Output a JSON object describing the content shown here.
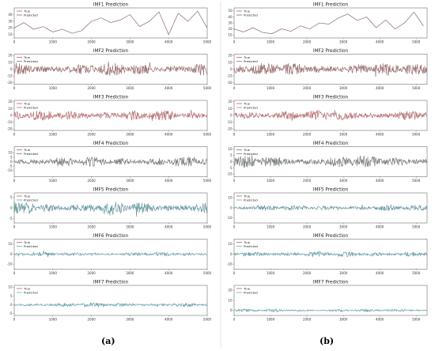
{
  "figure": {
    "panel_labels": [
      "(a)",
      "(b)"
    ],
    "legend": [
      "True",
      "Predicted"
    ]
  },
  "colors": {
    "true": "#c85a5a",
    "imf1_pred": "#707070",
    "imf2_pred": "#8a7a7a",
    "imf3_pred": "#b07a7a",
    "imf4_pred": "#5f8a8a",
    "imf5_pred": "#47b0b8",
    "imf6_pred": "#42b8c0",
    "imf7_pred": "#45bcc4"
  },
  "chart_data": [
    {
      "type": "line",
      "panel": "a",
      "row": 1,
      "title": "IMF1 Prediction",
      "legend": [
        "True",
        "Predicted"
      ],
      "xlim": [
        0,
        5000
      ],
      "xticks": [
        0,
        1000,
        2000,
        3000,
        4000,
        5000
      ],
      "ylim": [
        5,
        50
      ],
      "yticks": [
        10,
        20,
        30,
        40
      ],
      "series": [
        {
          "name": "True",
          "x": [
            0,
            250,
            500,
            750,
            1000,
            1250,
            1500,
            1750,
            2000,
            2250,
            2500,
            2750,
            3000,
            3250,
            3500,
            3750,
            4000,
            4250,
            4500,
            4750,
            5000
          ],
          "y": [
            20,
            28,
            18,
            22,
            14,
            18,
            12,
            16,
            30,
            35,
            28,
            32,
            40,
            22,
            30,
            44,
            10,
            42,
            30,
            45,
            20
          ]
        },
        {
          "name": "Predicted",
          "x": [
            0,
            250,
            500,
            750,
            1000,
            1250,
            1500,
            1750,
            2000,
            2250,
            2500,
            2750,
            3000,
            3250,
            3500,
            3750,
            4000,
            4250,
            4500,
            4750,
            5000
          ],
          "y": [
            20,
            28,
            18,
            22,
            14,
            18,
            12,
            16,
            30,
            35,
            28,
            32,
            40,
            22,
            30,
            44,
            10,
            42,
            30,
            45,
            20
          ]
        }
      ]
    },
    {
      "type": "line",
      "panel": "a",
      "row": 2,
      "title": "IMF2 Prediction",
      "legend": [
        "True",
        "Predicted"
      ],
      "xlim": [
        0,
        5000
      ],
      "xticks": [
        0,
        1000,
        2000,
        3000,
        4000,
        5000
      ],
      "ylim": [
        -22,
        22
      ],
      "yticks": [
        -20,
        -10,
        0,
        10,
        20
      ],
      "amplitude": 10
    },
    {
      "type": "line",
      "panel": "a",
      "row": 3,
      "title": "IMF3 Prediction",
      "legend": [
        "True",
        "Predicted"
      ],
      "xlim": [
        0,
        5000
      ],
      "xticks": [
        0,
        1000,
        2000,
        3000,
        4000,
        5000
      ],
      "ylim": [
        -22,
        22
      ],
      "yticks": [
        -20,
        -10,
        0,
        10,
        20
      ],
      "amplitude": 8
    },
    {
      "type": "line",
      "panel": "a",
      "row": 4,
      "title": "IMF4 Prediction",
      "legend": [
        "True",
        "Predicted"
      ],
      "xlim": [
        0,
        5000
      ],
      "xticks": [
        0,
        1000,
        2000,
        3000,
        4000,
        5000
      ],
      "ylim": [
        -17,
        17
      ],
      "yticks": [
        -10,
        -5,
        0,
        5,
        10
      ],
      "amplitude": 6
    },
    {
      "type": "line",
      "panel": "a",
      "row": 5,
      "title": "IMF5 Prediction",
      "legend": [
        "True",
        "Predicted"
      ],
      "xlim": [
        0,
        5000
      ],
      "xticks": [
        0,
        1000,
        2000,
        3000,
        4000,
        5000
      ],
      "ylim": [
        -7,
        7
      ],
      "yticks": [
        -5,
        0,
        5
      ],
      "amplitude": 3
    },
    {
      "type": "line",
      "panel": "a",
      "row": 6,
      "title": "IMF6 Prediction",
      "legend": [
        "True",
        "Predicted"
      ],
      "xlim": [
        0,
        5000
      ],
      "xticks": [
        0,
        1000,
        2000,
        3000,
        4000,
        5000
      ],
      "ylim": [
        -15,
        15
      ],
      "yticks": [
        -10,
        0,
        10
      ],
      "amplitude": 2
    },
    {
      "type": "line",
      "panel": "a",
      "row": 7,
      "title": "IMF7 Prediction",
      "legend": [
        "True",
        "Predicted"
      ],
      "xlim": [
        0,
        5000
      ],
      "xticks": [
        0,
        1000,
        2000,
        3000,
        4000,
        5000
      ],
      "ylim": [
        -6,
        11
      ],
      "yticks": [
        -5,
        0,
        5,
        10
      ],
      "amplitude": 1.2
    },
    {
      "type": "line",
      "panel": "b",
      "row": 1,
      "title": "IMF1 Prediction",
      "legend": [
        "True",
        "Predicted"
      ],
      "xlim": [
        0,
        5300
      ],
      "xticks": [
        0,
        1000,
        2000,
        3000,
        4000,
        5000
      ],
      "ylim": [
        5,
        55
      ],
      "yticks": [
        10,
        20,
        30,
        40,
        50
      ],
      "series": [
        {
          "name": "True",
          "x": [
            0,
            260,
            520,
            780,
            1040,
            1300,
            1560,
            1820,
            2080,
            2340,
            2600,
            2860,
            3120,
            3380,
            3640,
            3900,
            4160,
            4420,
            4680,
            4940,
            5200
          ],
          "y": [
            20,
            15,
            22,
            14,
            12,
            20,
            16,
            25,
            20,
            30,
            28,
            38,
            45,
            34,
            40,
            22,
            35,
            20,
            30,
            48,
            25
          ]
        },
        {
          "name": "Predicted",
          "x": [
            0,
            260,
            520,
            780,
            1040,
            1300,
            1560,
            1820,
            2080,
            2340,
            2600,
            2860,
            3120,
            3380,
            3640,
            3900,
            4160,
            4420,
            4680,
            4940,
            5200
          ],
          "y": [
            20,
            15,
            22,
            14,
            12,
            20,
            16,
            25,
            20,
            30,
            28,
            38,
            45,
            34,
            40,
            22,
            35,
            20,
            30,
            48,
            25
          ]
        }
      ]
    },
    {
      "type": "line",
      "panel": "b",
      "row": 2,
      "title": "IMF2 Prediction",
      "legend": [
        "True",
        "Predicted"
      ],
      "xlim": [
        0,
        5300
      ],
      "xticks": [
        0,
        1000,
        2000,
        3000,
        4000,
        5000
      ],
      "ylim": [
        -22,
        22
      ],
      "yticks": [
        -20,
        -10,
        0,
        10,
        20
      ],
      "amplitude": 10
    },
    {
      "type": "line",
      "panel": "b",
      "row": 3,
      "title": "IMF3 Prediction",
      "legend": [
        "True",
        "Predicted"
      ],
      "xlim": [
        0,
        5300
      ],
      "xticks": [
        0,
        1000,
        2000,
        3000,
        4000,
        5000
      ],
      "ylim": [
        -22,
        22
      ],
      "yticks": [
        -20,
        -10,
        0,
        10,
        20
      ],
      "amplitude": 8
    },
    {
      "type": "line",
      "panel": "b",
      "row": 4,
      "title": "IMF4 Prediction",
      "legend": [
        "True",
        "Predicted"
      ],
      "xlim": [
        0,
        5300
      ],
      "xticks": [
        0,
        1000,
        2000,
        3000,
        4000,
        5000
      ],
      "ylim": [
        -12,
        12
      ],
      "yticks": [
        -10,
        -5,
        0,
        5,
        10
      ],
      "amplitude": 5
    },
    {
      "type": "line",
      "panel": "b",
      "row": 5,
      "title": "IMF5 Prediction",
      "legend": [
        "True",
        "Predicted"
      ],
      "xlim": [
        0,
        5300
      ],
      "xticks": [
        0,
        1000,
        2000,
        3000,
        4000,
        5000
      ],
      "ylim": [
        -15,
        15
      ],
      "yticks": [
        -10,
        0,
        10
      ],
      "amplitude": 3
    },
    {
      "type": "line",
      "panel": "b",
      "row": 6,
      "title": "IMF6 Prediction",
      "legend": [
        "True",
        "Predicted"
      ],
      "xlim": [
        0,
        5300
      ],
      "xticks": [
        0,
        1000,
        2000,
        3000,
        4000,
        5000
      ],
      "ylim": [
        -15,
        15
      ],
      "yticks": [
        -10,
        0,
        10
      ],
      "amplitude": 3
    },
    {
      "type": "line",
      "panel": "b",
      "row": 7,
      "title": "IMF7 Prediction",
      "legend": [
        "True",
        "Predicted"
      ],
      "xlim": [
        0,
        5300
      ],
      "xticks": [
        0,
        1000,
        2000,
        3000,
        4000,
        5000
      ],
      "ylim": [
        -5,
        25
      ],
      "yticks": [
        0,
        10,
        20
      ],
      "amplitude": 1.5
    }
  ]
}
